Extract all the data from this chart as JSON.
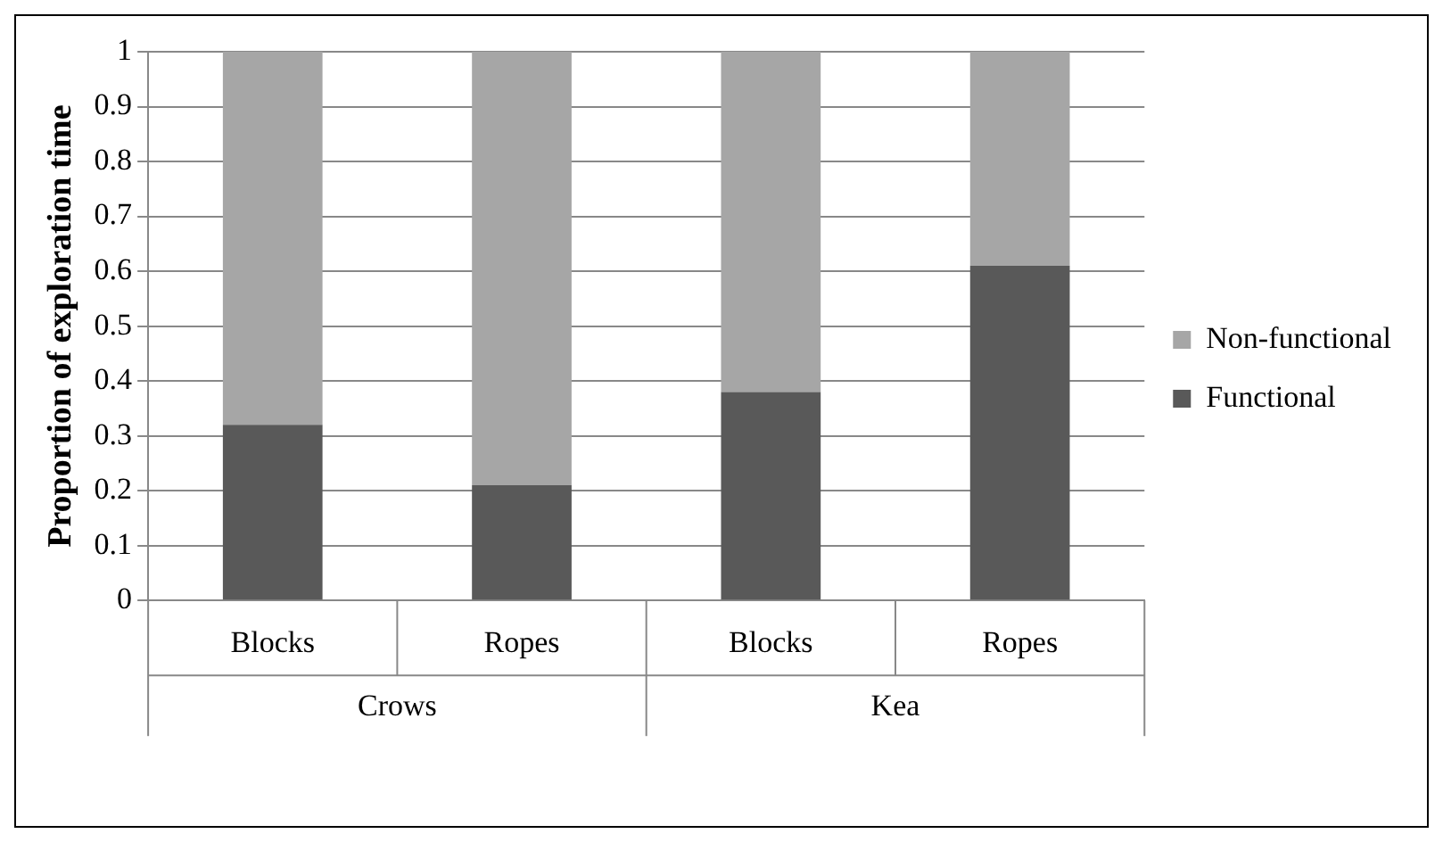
{
  "chart_data": {
    "type": "bar",
    "stacked": true,
    "ylabel": "Proportion of exploration time",
    "categories": [
      "Blocks",
      "Ropes",
      "Blocks",
      "Ropes"
    ],
    "series": [
      {
        "name": "Functional",
        "color": "#595959",
        "values": [
          0.32,
          0.21,
          0.38,
          0.61
        ]
      },
      {
        "name": "Non-functional",
        "color": "#a6a6a6",
        "values": [
          0.68,
          0.79,
          0.62,
          0.39
        ]
      }
    ],
    "annotations": [
      "Crows",
      "Kea"
    ],
    "ylim": [
      0,
      1
    ],
    "yticks": [
      0,
      0.1,
      0.2,
      0.3,
      0.4,
      0.5,
      0.6,
      0.7,
      0.8,
      0.9,
      1
    ],
    "grid": "y",
    "legend": "right"
  }
}
